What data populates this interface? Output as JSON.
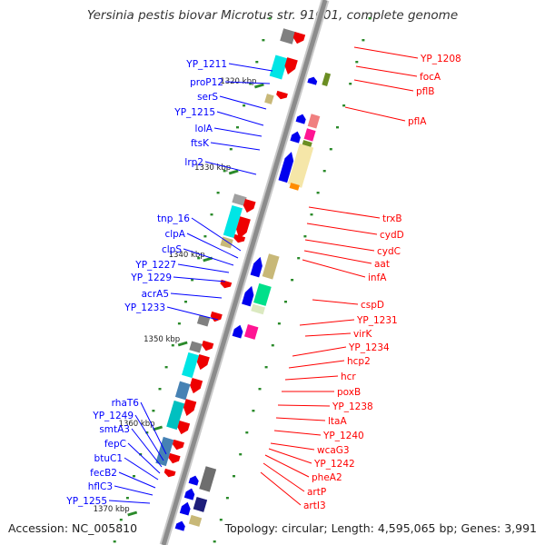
{
  "title": "Yersinia pestis biovar Microtus str. 91001, complete genome",
  "footer": {
    "accession": "Accession: NC_005810",
    "summary": "Topology: circular; Length: 4,595,065 bp; Genes: 3,991"
  },
  "colors": {
    "left_label": "#0000ff",
    "right_label": "#ff0000",
    "backbone": "#8c8c8c",
    "tick": "#2a8a2a"
  },
  "scale_labels": [
    "1320 kbp",
    "1330 kbp",
    "1340 kbp",
    "1350 kbp",
    "1360 kbp",
    "1370 kbp"
  ],
  "left_genes": [
    "YP_1211",
    "proP12",
    "serS",
    "YP_1215",
    "lolA",
    "ftsK",
    "lrp2",
    "tnp_16",
    "clpA",
    "clpS",
    "YP_1227",
    "YP_1229",
    "acrA5",
    "YP_1233",
    "rhaT6",
    "YP_1249",
    "smtA3",
    "fepC",
    "btuC1",
    "fecB2",
    "hflC3",
    "YP_1255"
  ],
  "right_genes": [
    "YP_1208",
    "focA",
    "pflB",
    "pflA",
    "trxB",
    "cydD",
    "cydC",
    "aat",
    "infA",
    "cspD",
    "YP_1231",
    "virK",
    "YP_1234",
    "hcp2",
    "hcr",
    "poxB",
    "YP_1238",
    "ltaA",
    "YP_1240",
    "wcaG3",
    "YP_1242",
    "pheA2",
    "artP",
    "artI3"
  ]
}
